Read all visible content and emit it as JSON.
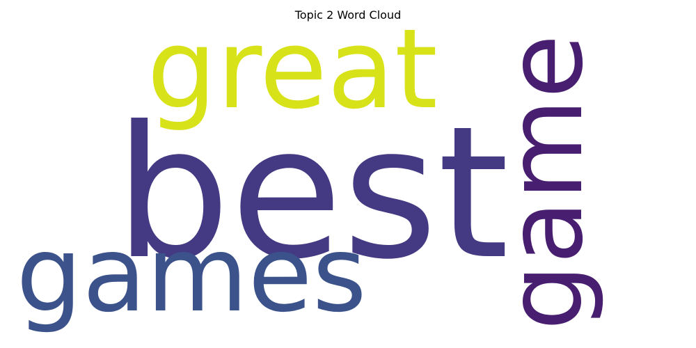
{
  "title": "Topic 2 Word Cloud",
  "words": [
    {
      "text": "best",
      "color": "#443a83",
      "orientation": "horizontal"
    },
    {
      "text": "great",
      "color": "#d8e219",
      "orientation": "horizontal"
    },
    {
      "text": "games",
      "color": "#3b528b",
      "orientation": "horizontal"
    },
    {
      "text": "game",
      "color": "#481f70",
      "orientation": "vertical"
    }
  ]
}
